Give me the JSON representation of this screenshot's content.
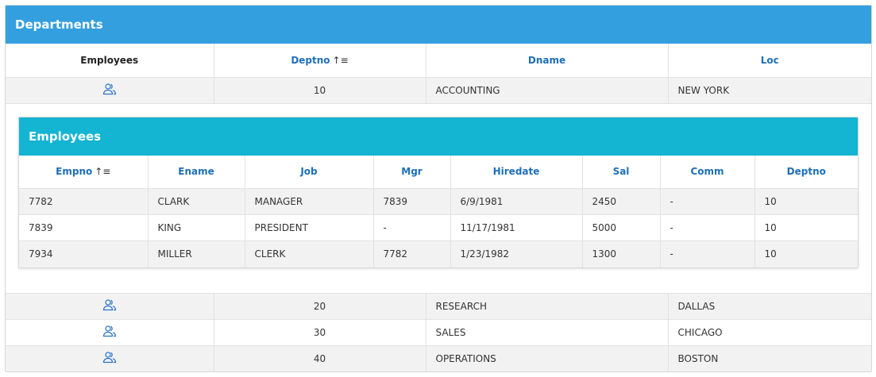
{
  "departments_region": {
    "title": "Departments",
    "headers": [
      "Employees",
      "Deptno",
      "Dname",
      "Loc"
    ],
    "sort_icon": "sort-ascending-icon",
    "rows": [
      {
        "deptno": "10",
        "dname": "ACCOUNTING",
        "loc": "NEW YORK"
      },
      {
        "deptno": "20",
        "dname": "RESEARCH",
        "loc": "DALLAS"
      },
      {
        "deptno": "30",
        "dname": "SALES",
        "loc": "CHICAGO"
      },
      {
        "deptno": "40",
        "dname": "OPERATIONS",
        "loc": "BOSTON"
      }
    ]
  },
  "employees_region": {
    "title": "Employees",
    "headers": [
      "Empno",
      "Ename",
      "Job",
      "Mgr",
      "Hiredate",
      "Sal",
      "Comm",
      "Deptno"
    ],
    "sort_icon": "sort-ascending-icon",
    "rows": [
      {
        "empno": "7782",
        "ename": "CLARK",
        "job": "MANAGER",
        "mgr": "7839",
        "hiredate": "6/9/1981",
        "sal": "2450",
        "comm": "-",
        "deptno": "10"
      },
      {
        "empno": "7839",
        "ename": "KING",
        "job": "PRESIDENT",
        "mgr": "-",
        "hiredate": "11/17/1981",
        "sal": "5000",
        "comm": "-",
        "deptno": "10"
      },
      {
        "empno": "7934",
        "ename": "MILLER",
        "job": "CLERK",
        "mgr": "7782",
        "hiredate": "1/23/1982",
        "sal": "1300",
        "comm": "-",
        "deptno": "10"
      }
    ]
  },
  "colors": {
    "departments_header": "#349fde",
    "employees_header": "#13b5d2",
    "link": "#1d6fb8",
    "icon": "#2a73c9"
  },
  "row_icon": "users-icon"
}
